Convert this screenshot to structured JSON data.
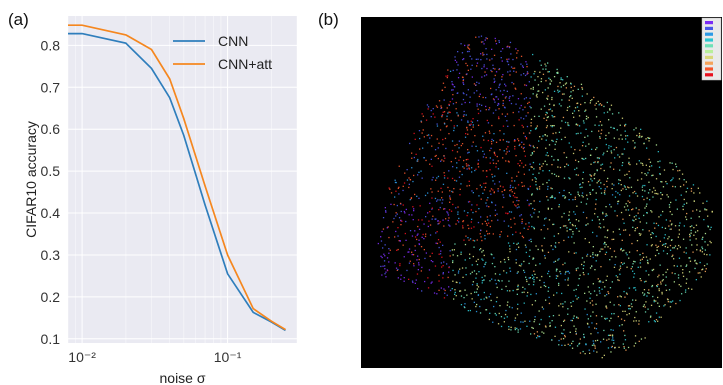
{
  "panels": {
    "a": "(a)",
    "b": "(b)"
  },
  "chart_data": [
    {
      "type": "line",
      "xlabel": "noise σ",
      "ylabel": "CIFAR10 accuracy",
      "xscale": "log",
      "xlim": [
        0.008,
        0.3
      ],
      "ylim": [
        0.09,
        0.87
      ],
      "x_ticks": [
        {
          "value": 0.01,
          "label": "10⁻²"
        },
        {
          "value": 0.1,
          "label": "10⁻¹"
        }
      ],
      "y_ticks": [
        0.1,
        0.2,
        0.3,
        0.4,
        0.5,
        0.6,
        0.7,
        0.8
      ],
      "grid": true,
      "legend": "top-right",
      "series": [
        {
          "name": "CNN",
          "color": "#2f7ebc",
          "points": [
            [
              0.008,
              0.828
            ],
            [
              0.01,
              0.828
            ],
            [
              0.02,
              0.805
            ],
            [
              0.03,
              0.745
            ],
            [
              0.04,
              0.675
            ],
            [
              0.05,
              0.585
            ],
            [
              0.07,
              0.42
            ],
            [
              0.1,
              0.255
            ],
            [
              0.15,
              0.163
            ],
            [
              0.2,
              0.14
            ],
            [
              0.25,
              0.12
            ]
          ]
        },
        {
          "name": "CNN+att",
          "color": "#f5871f",
          "points": [
            [
              0.008,
              0.848
            ],
            [
              0.01,
              0.848
            ],
            [
              0.02,
              0.825
            ],
            [
              0.03,
              0.79
            ],
            [
              0.04,
              0.72
            ],
            [
              0.05,
              0.625
            ],
            [
              0.07,
              0.465
            ],
            [
              0.1,
              0.3
            ],
            [
              0.15,
              0.172
            ],
            [
              0.2,
              0.142
            ],
            [
              0.25,
              0.122
            ]
          ]
        }
      ]
    },
    {
      "type": "scatter",
      "background": "#000000",
      "legend": "top-right",
      "legend_colors": [
        "#7b2cf5",
        "#4a57e8",
        "#2c9ae6",
        "#2cc6d2",
        "#6ee1b7",
        "#b8ef9a",
        "#d8d87a",
        "#f5a35a",
        "#f5572c",
        "#e8101e"
      ]
    }
  ]
}
